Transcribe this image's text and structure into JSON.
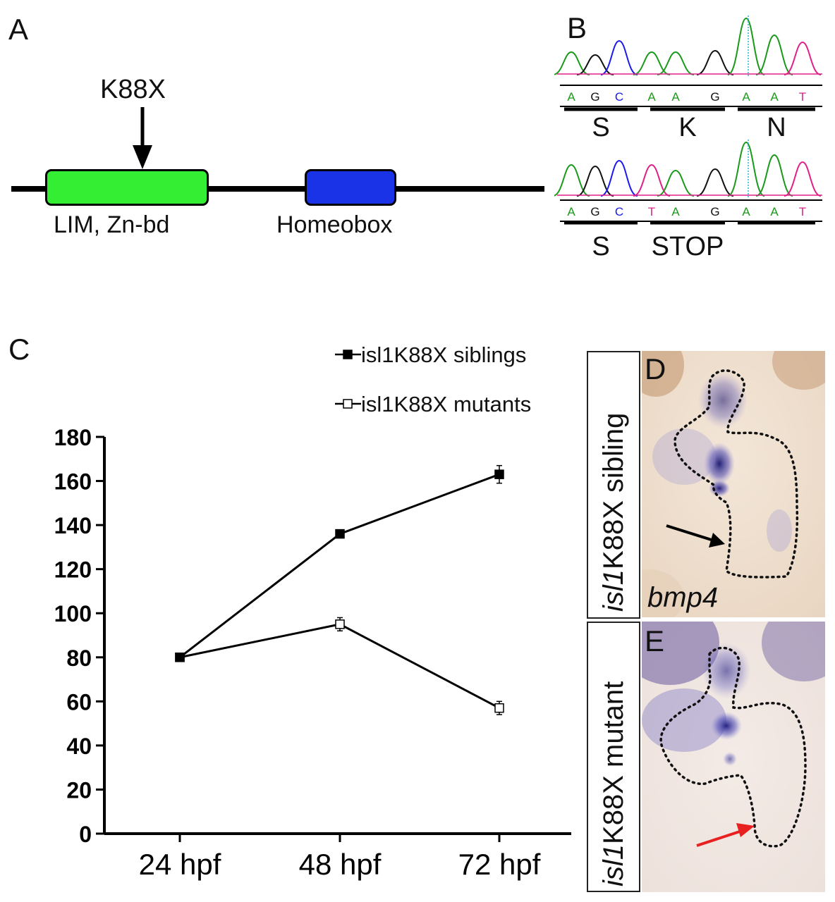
{
  "panels": {
    "A": "A",
    "B": "B",
    "C": "C",
    "D": "D",
    "E": "E"
  },
  "panel_a": {
    "mutation_label": "K88X",
    "domain1": "LIM, Zn-bd",
    "domain2": "Homeobox",
    "domain1_color": "#33ee33",
    "domain2_color": "#1a33e6"
  },
  "panel_b": {
    "wt_bases": [
      "A",
      "G",
      "C",
      "A",
      "A",
      "G",
      "A",
      "A",
      "T"
    ],
    "mut_bases": [
      "A",
      "G",
      "C",
      "T",
      "A",
      "G",
      "A",
      "A",
      "T"
    ],
    "wt_codons": [
      "S",
      "K",
      "N"
    ],
    "mut_codons": [
      "S",
      "STOP",
      ""
    ],
    "base_colors": {
      "A": "#1a9a1a",
      "G": "#111111",
      "C": "#1a1aee",
      "T": "#e0208a"
    }
  },
  "panel_d": {
    "genotype_italic": "isl1",
    "genotype_rest": "K88X sibling",
    "gene": "bmp4"
  },
  "panel_e": {
    "genotype_italic": "isl1",
    "genotype_rest": "K88X mutant"
  },
  "chart_data": {
    "type": "line",
    "categories": [
      "24 hpf",
      "48 hpf",
      "72 hpf"
    ],
    "series": [
      {
        "name": "isl1K88X siblings",
        "values": [
          80,
          136,
          163
        ],
        "errors": [
          0,
          1.5,
          4
        ],
        "marker": "filled-square"
      },
      {
        "name": "isl1K88X mutants",
        "values": [
          80,
          95,
          57
        ],
        "errors": [
          0,
          3,
          3
        ],
        "marker": "open-square"
      }
    ],
    "yticks": [
      "0",
      "20",
      "40",
      "60",
      "80",
      "100",
      "120",
      "140",
      "160",
      "180"
    ],
    "ylim": [
      0,
      180
    ],
    "legend_position": "top-right",
    "grid": false
  }
}
